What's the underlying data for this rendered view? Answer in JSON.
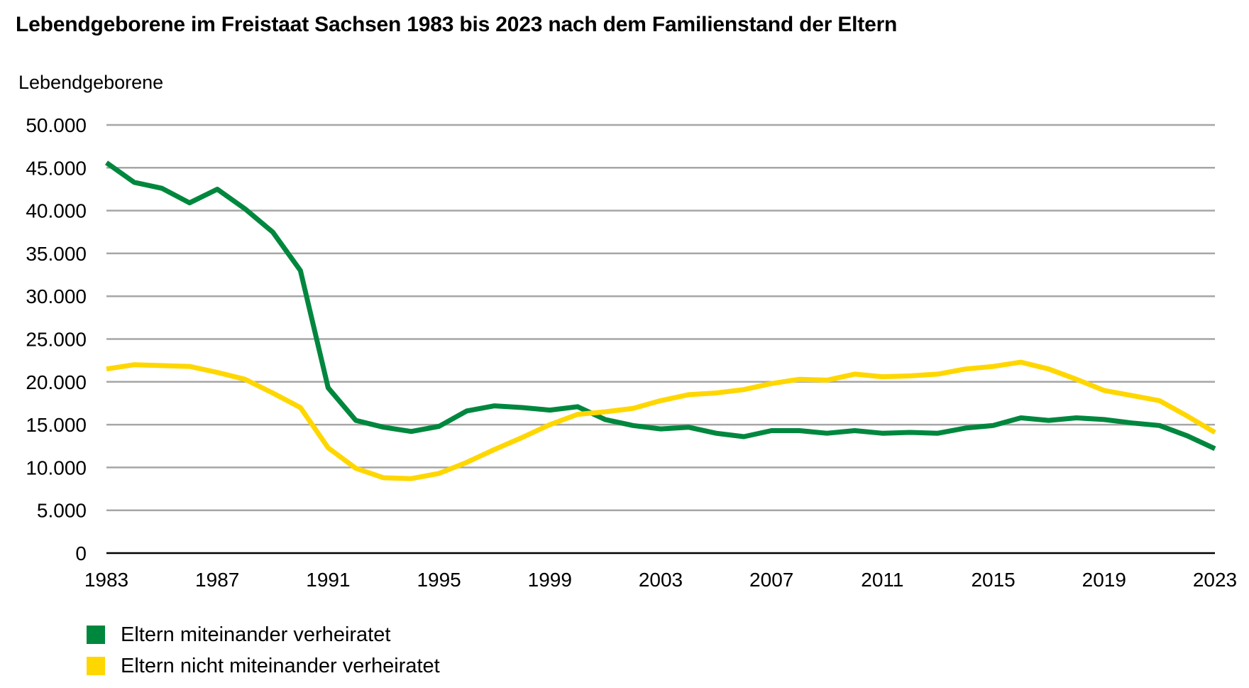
{
  "chart_data": {
    "type": "line",
    "title": "Lebendgeborene im Freistaat Sachsen 1983 bis 2023 nach dem Familienstand der Eltern",
    "ylabel": "Lebendgeborene",
    "xlabel": "",
    "ylim": [
      0,
      50000
    ],
    "xlim": [
      1983,
      2023
    ],
    "y_ticks": [
      0,
      5000,
      10000,
      15000,
      20000,
      25000,
      30000,
      35000,
      40000,
      45000,
      50000
    ],
    "y_tick_labels": [
      "0",
      "5.000",
      "10.000",
      "15.000",
      "20.000",
      "25.000",
      "30.000",
      "35.000",
      "40.000",
      "45.000",
      "50.000"
    ],
    "x_ticks": [
      1983,
      1987,
      1991,
      1995,
      1999,
      2003,
      2007,
      2011,
      2015,
      2019,
      2023
    ],
    "x_tick_labels": [
      "1983",
      "1987",
      "1991",
      "1995",
      "1999",
      "2003",
      "2007",
      "2011",
      "2015",
      "2019",
      "2023"
    ],
    "grid": true,
    "legend_position": "bottom-left",
    "x": [
      1983,
      1984,
      1985,
      1986,
      1987,
      1988,
      1989,
      1990,
      1991,
      1992,
      1993,
      1994,
      1995,
      1996,
      1997,
      1998,
      1999,
      2000,
      2001,
      2002,
      2003,
      2004,
      2005,
      2006,
      2007,
      2008,
      2009,
      2010,
      2011,
      2012,
      2013,
      2014,
      2015,
      2016,
      2017,
      2018,
      2019,
      2020,
      2021,
      2022,
      2023
    ],
    "series": [
      {
        "name": "Eltern miteinander verheiratet",
        "color": "#00873e",
        "values": [
          45600,
          43300,
          42600,
          40900,
          42500,
          40200,
          37500,
          33000,
          19300,
          15500,
          14700,
          14200,
          14800,
          16600,
          17200,
          17000,
          16700,
          17100,
          15600,
          14900,
          14500,
          14700,
          14000,
          13600,
          14300,
          14300,
          14000,
          14300,
          14000,
          14100,
          14000,
          14600,
          14900,
          15800,
          15500,
          15800,
          15600,
          15200,
          14900,
          13700,
          12200
        ]
      },
      {
        "name": "Eltern nicht miteinander verheiratet",
        "color": "#ffd700",
        "values": [
          21500,
          22000,
          21900,
          21800,
          21100,
          20300,
          18700,
          17000,
          12300,
          9900,
          8800,
          8700,
          9300,
          10600,
          12100,
          13500,
          15000,
          16200,
          16500,
          16900,
          17800,
          18500,
          18700,
          19100,
          19800,
          20300,
          20200,
          20900,
          20600,
          20700,
          20900,
          21500,
          21800,
          22300,
          21500,
          20300,
          19000,
          18400,
          17800,
          16000,
          14100
        ]
      }
    ]
  }
}
